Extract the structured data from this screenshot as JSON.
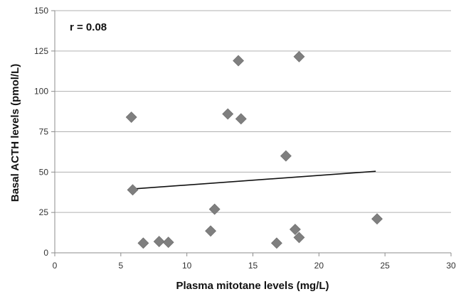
{
  "chart_data": {
    "type": "scatter",
    "title": "",
    "xlabel": "Plasma mitotane levels (mg/L)",
    "ylabel": "Basal ACTH levels (pmol/L)",
    "xlim": [
      0,
      30
    ],
    "ylim": [
      0,
      150
    ],
    "x_ticks": [
      0,
      5,
      10,
      15,
      20,
      25,
      30
    ],
    "y_ticks": [
      0,
      25,
      50,
      75,
      100,
      125,
      150
    ],
    "grid": "horizontal",
    "annotation": "r = 0.08",
    "points": [
      {
        "x": 5.8,
        "y": 84
      },
      {
        "x": 5.9,
        "y": 39
      },
      {
        "x": 6.7,
        "y": 6
      },
      {
        "x": 7.9,
        "y": 7
      },
      {
        "x": 8.6,
        "y": 6.5
      },
      {
        "x": 11.8,
        "y": 13.5
      },
      {
        "x": 12.1,
        "y": 27
      },
      {
        "x": 13.1,
        "y": 86
      },
      {
        "x": 13.9,
        "y": 119
      },
      {
        "x": 14.1,
        "y": 83
      },
      {
        "x": 16.8,
        "y": 6
      },
      {
        "x": 17.5,
        "y": 60
      },
      {
        "x": 18.2,
        "y": 14.5
      },
      {
        "x": 18.5,
        "y": 9.5
      },
      {
        "x": 18.5,
        "y": 121.5
      },
      {
        "x": 24.4,
        "y": 21
      }
    ],
    "trendline": {
      "x": [
        5.8,
        24.3
      ],
      "y": [
        39.5,
        50.5
      ]
    },
    "marker_color": "#7f7f7f",
    "line_color": "#111111",
    "grid_color": "#b0b0b0"
  }
}
